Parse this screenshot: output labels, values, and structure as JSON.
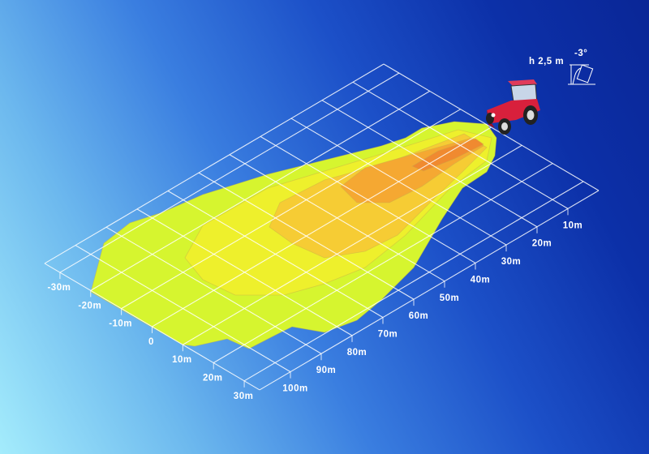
{
  "lateral_axis": {
    "ticks": [
      -30,
      -20,
      -10,
      0,
      10,
      20,
      30
    ],
    "labels": [
      "-30m",
      "-20m",
      "-10m",
      "0",
      "10m",
      "20m",
      "30m"
    ]
  },
  "distance_axis": {
    "ticks": [
      10,
      20,
      30,
      40,
      50,
      60,
      70,
      80,
      90,
      100
    ],
    "labels": [
      "10m",
      "20m",
      "30m",
      "40m",
      "50m",
      "60m",
      "70m",
      "80m",
      "90m",
      "100m"
    ]
  },
  "lamp": {
    "height_label": "h 2,5 m",
    "tilt_label": "-3°",
    "icon": "work-lamp-icon"
  },
  "vehicle": {
    "icon": "tractor-icon",
    "color": "#d8203c"
  },
  "colors": {
    "zone_1": "#d6f52f",
    "zone_2": "#eef02c",
    "zone_3": "#f6cc34",
    "zone_4": "#f5a832",
    "zone_5": "#f08a30",
    "grid": "#ffffff"
  }
}
